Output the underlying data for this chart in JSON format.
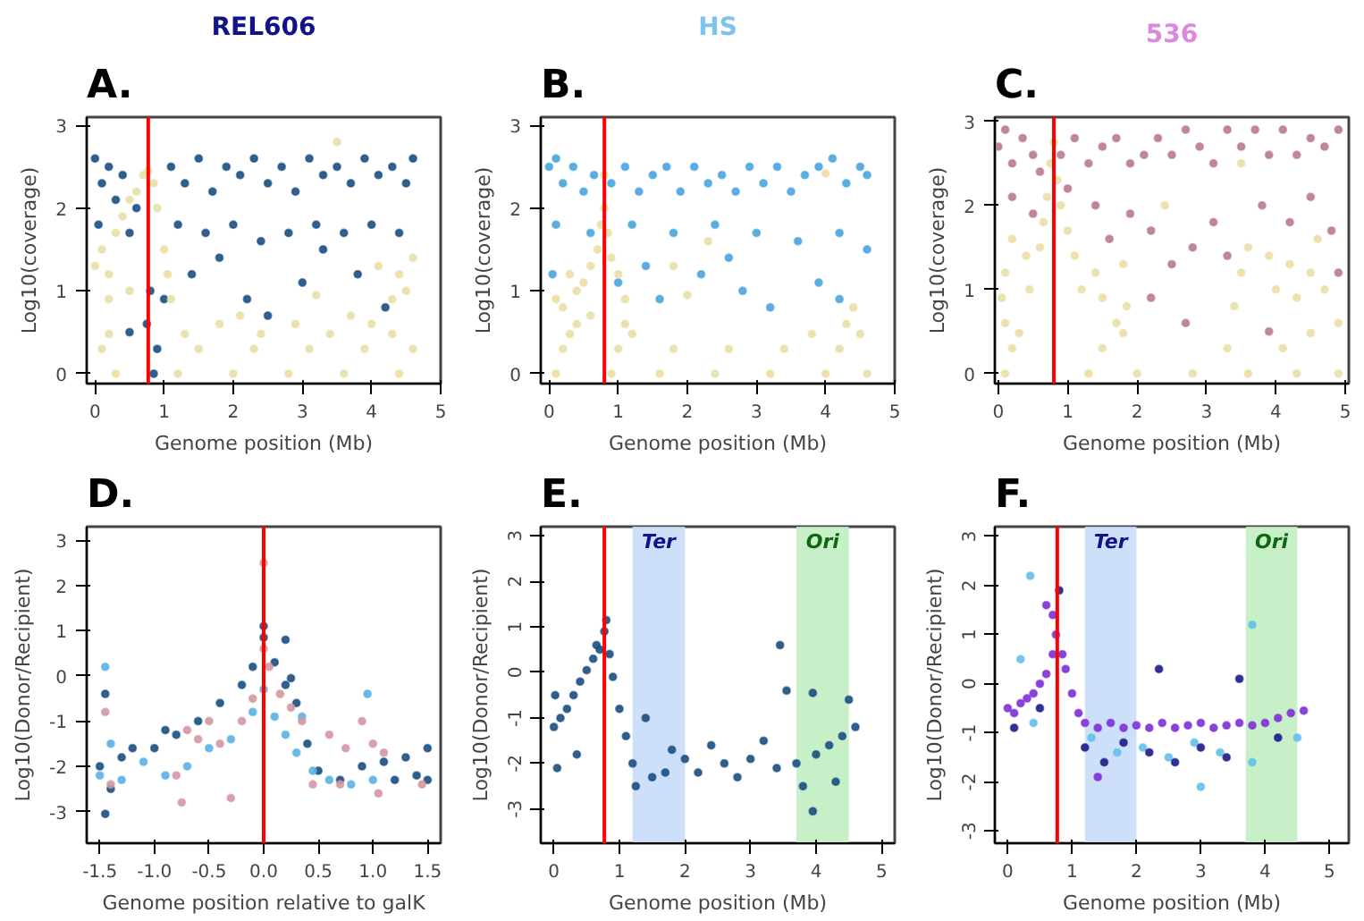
{
  "chart_data": [
    {
      "type": "scatter",
      "title": "REL606",
      "annotations": [
        "A."
      ],
      "xlabel": "Genome position (Mb)",
      "ylabel": "Log10(coverage)",
      "xlim": [
        -0.12,
        5.0
      ],
      "ylim": [
        -0.12,
        3.1
      ],
      "xticks": [
        0,
        1,
        2,
        3,
        4,
        5
      ],
      "yticks": [
        0,
        1,
        2,
        3
      ],
      "marker": "circle",
      "grid": false,
      "ref_lines": [
        {
          "axis": "x",
          "value": 0.77,
          "color": "#ff0000"
        }
      ],
      "series": [
        {
          "color": "#1a4f82",
          "x": [
            0.0,
            0.1,
            0.2,
            0.3,
            0.4,
            0.6,
            1.1,
            1.3,
            1.5,
            1.7,
            1.9,
            2.1,
            2.3,
            2.5,
            2.7,
            2.9,
            3.1,
            3.3,
            3.5,
            3.7,
            3.9,
            4.1,
            4.3,
            4.5,
            4.6,
            0.05,
            0.5,
            1.2,
            1.6,
            2.0,
            2.4,
            2.8,
            3.2,
            3.6,
            4.0,
            4.4,
            0.8,
            0.75,
            0.85,
            1.0,
            1.4,
            1.8,
            2.2,
            2.5,
            3.0,
            3.3,
            3.8,
            4.2,
            0.5,
            0.9
          ],
          "values": [
            2.6,
            2.3,
            2.5,
            2.1,
            2.4,
            2.0,
            2.5,
            2.3,
            2.6,
            2.2,
            2.5,
            2.4,
            2.6,
            2.3,
            2.5,
            2.2,
            2.6,
            2.4,
            2.5,
            2.3,
            2.6,
            2.4,
            2.5,
            2.3,
            2.6,
            1.8,
            1.7,
            1.8,
            1.7,
            1.8,
            1.6,
            1.7,
            1.8,
            1.7,
            1.8,
            1.7,
            1.0,
            0.6,
            0.0,
            0.9,
            1.2,
            1.4,
            0.9,
            0.7,
            1.1,
            1.5,
            1.2,
            0.8,
            0.5,
            0.3
          ]
        },
        {
          "color": "#eadfa6",
          "x": [
            0.0,
            0.1,
            0.2,
            0.3,
            0.4,
            0.5,
            0.6,
            0.7,
            0.77,
            0.85,
            0.9,
            1.0,
            1.05,
            1.1,
            0.2,
            0.5,
            4.4,
            4.5,
            4.6,
            4.3,
            3.5,
            0.3,
            1.2,
            2.0,
            2.8,
            3.6,
            4.4,
            0.1,
            1.5,
            2.3,
            3.1,
            3.9,
            4.6,
            0.2,
            1.3,
            2.4,
            3.4,
            4.3,
            1.8,
            2.9,
            4.0,
            2.1,
            3.7,
            4.1,
            3.2
          ],
          "values": [
            1.3,
            1.5,
            1.2,
            1.7,
            1.9,
            2.1,
            2.2,
            2.4,
            2.45,
            2.3,
            2.0,
            1.5,
            1.2,
            0.9,
            0.9,
            1.0,
            1.2,
            1.0,
            1.4,
            0.9,
            2.8,
            0,
            0,
            0,
            0,
            0,
            0,
            0.3,
            0.3,
            0.3,
            0.3,
            0.3,
            0.3,
            0.48,
            0.48,
            0.48,
            0.48,
            0.48,
            0.6,
            0.6,
            0.6,
            0.7,
            0.7,
            1.3,
            0.95
          ]
        }
      ]
    },
    {
      "type": "scatter",
      "title": "HS",
      "annotations": [
        "B."
      ],
      "xlabel": "Genome position (Mb)",
      "ylabel": "Log10(coverage)",
      "xlim": [
        -0.12,
        5.0
      ],
      "ylim": [
        -0.12,
        3.1
      ],
      "xticks": [
        0,
        1,
        2,
        3,
        4,
        5
      ],
      "yticks": [
        0,
        1,
        2,
        3
      ],
      "marker": "circle",
      "grid": false,
      "ref_lines": [
        {
          "axis": "x",
          "value": 0.8,
          "color": "#ff0000"
        }
      ],
      "series": [
        {
          "color": "#4aa5de",
          "x": [
            0.0,
            0.1,
            0.2,
            0.35,
            0.5,
            0.65,
            0.9,
            1.1,
            1.3,
            1.5,
            1.7,
            1.9,
            2.1,
            2.3,
            2.5,
            2.7,
            2.9,
            3.1,
            3.3,
            3.5,
            3.7,
            3.9,
            4.1,
            4.3,
            4.5,
            4.6,
            0.1,
            0.6,
            1.2,
            1.8,
            2.4,
            3.0,
            3.6,
            4.2,
            4.6,
            0.05,
            1.0,
            1.4,
            1.6,
            2.2,
            2.8,
            3.2,
            3.9,
            4.2,
            2.6
          ],
          "values": [
            2.5,
            2.6,
            2.3,
            2.5,
            2.2,
            2.4,
            2.3,
            2.5,
            2.2,
            2.4,
            2.5,
            2.2,
            2.5,
            2.3,
            2.4,
            2.2,
            2.5,
            2.3,
            2.5,
            2.2,
            2.4,
            2.5,
            2.6,
            2.3,
            2.5,
            2.4,
            1.8,
            1.7,
            1.8,
            1.7,
            1.8,
            1.7,
            1.6,
            1.7,
            1.5,
            1.2,
            1.1,
            1.3,
            0.9,
            1.2,
            1.0,
            0.8,
            1.1,
            0.9,
            1.4
          ]
        },
        {
          "color": "#eadfa6",
          "x": [
            0.8,
            0.8,
            0.75,
            0.85,
            0.7,
            0.9,
            0.6,
            1.0,
            0.5,
            0.4,
            1.1,
            0.3,
            0.1,
            0.2,
            0.1,
            0.9,
            1.6,
            2.4,
            3.2,
            4.0,
            4.6,
            0.2,
            1.0,
            1.8,
            2.6,
            3.4,
            4.2,
            0.3,
            1.2,
            3.8,
            4.5,
            0.4,
            1.1,
            4.3,
            0.6,
            4.4,
            4.0,
            2.3,
            1.8,
            2.0
          ],
          "values": [
            2.4,
            2.0,
            1.8,
            1.7,
            1.5,
            1.4,
            1.3,
            1.2,
            1.1,
            1.0,
            0.9,
            1.2,
            0.9,
            0.8,
            0,
            0,
            0,
            0,
            0,
            0,
            0,
            0.3,
            0.3,
            0.3,
            0.3,
            0.3,
            0.3,
            0.48,
            0.48,
            0.48,
            0.48,
            0.6,
            0.6,
            0.6,
            0.7,
            0.8,
            2.42,
            1.6,
            1.3,
            0.95
          ]
        }
      ]
    },
    {
      "type": "scatter",
      "title": "536",
      "annotations": [
        "C."
      ],
      "xlabel": "Genome position (Mb)",
      "ylabel": "Log10(coverage)",
      "xlim": [
        -0.05,
        5.05
      ],
      "ylim": [
        -0.12,
        3.05
      ],
      "xticks": [
        0,
        1,
        2,
        3,
        4,
        5
      ],
      "yticks": [
        0,
        1,
        2,
        3
      ],
      "marker": "circle",
      "grid": false,
      "ref_lines": [
        {
          "axis": "x",
          "value": 0.8,
          "color": "#ff0000"
        }
      ],
      "series": [
        {
          "color": "#b97b8c",
          "x": [
            0.0,
            0.1,
            0.2,
            0.35,
            0.5,
            0.6,
            0.9,
            1.1,
            1.3,
            1.5,
            1.7,
            1.9,
            2.1,
            2.3,
            2.5,
            2.7,
            2.9,
            3.1,
            3.3,
            3.5,
            3.7,
            3.9,
            4.1,
            4.3,
            4.5,
            4.7,
            4.9,
            0.2,
            0.5,
            1.0,
            1.4,
            1.6,
            1.9,
            2.2,
            2.5,
            2.8,
            3.1,
            3.3,
            3.8,
            4.2,
            4.5,
            4.8,
            2.7,
            2.2,
            3.9,
            4.9
          ],
          "values": [
            2.7,
            2.9,
            2.5,
            2.8,
            2.6,
            2.4,
            2.6,
            2.8,
            2.5,
            2.7,
            2.8,
            2.5,
            2.6,
            2.8,
            2.6,
            2.9,
            2.7,
            2.5,
            2.9,
            2.7,
            2.9,
            2.6,
            2.9,
            2.6,
            2.8,
            2.7,
            2.9,
            2.1,
            1.9,
            2.2,
            2.0,
            1.6,
            1.9,
            1.7,
            1.3,
            1.5,
            1.8,
            1.4,
            2.0,
            1.8,
            2.1,
            1.7,
            0.6,
            0.9,
            0.5,
            1.2
          ]
        },
        {
          "color": "#eadfa6",
          "x": [
            0.8,
            0.75,
            0.85,
            0.7,
            0.9,
            0.65,
            1.0,
            1.1,
            0.6,
            1.2,
            0.1,
            0.2,
            0.05,
            0.4,
            0.45,
            1.4,
            1.5,
            1.8,
            1.85,
            3.5,
            3.6,
            3.9,
            4.0,
            4.2,
            4.3,
            4.6,
            4.5,
            4.7,
            3.4,
            0.1,
            1.3,
            2.0,
            2.8,
            3.6,
            4.3,
            4.9,
            0.2,
            1.5,
            3.3,
            4.1,
            0.3,
            1.8,
            4.5,
            0.1,
            1.7,
            4.9,
            3.5,
            2.4
          ],
          "values": [
            2.75,
            2.5,
            2.3,
            2.1,
            2.0,
            1.8,
            1.7,
            1.4,
            1.5,
            1.0,
            1.2,
            1.6,
            0.9,
            1.4,
            1.0,
            1.2,
            0.9,
            1.3,
            0.8,
            1.2,
            1.5,
            1.4,
            1.0,
            1.3,
            0.9,
            1.6,
            1.2,
            1.0,
            0.8,
            0,
            0,
            0,
            0,
            0,
            0,
            0,
            0.3,
            0.3,
            0.3,
            0.3,
            0.48,
            0.48,
            0.48,
            0.6,
            0.6,
            0.6,
            2.5,
            2.0
          ]
        }
      ]
    },
    {
      "type": "scatter",
      "annotations": [
        "D."
      ],
      "xlabel": "Genome position relative to galK",
      "ylabel": "Log10(Donor/Recipient)",
      "xlim": [
        -1.62,
        1.62
      ],
      "ylim": [
        -3.7,
        3.3
      ],
      "xticks": [
        -1.5,
        {
          "value": -1,
          "label": "-1.0"
        },
        -0.5,
        {
          "value": 0,
          "label": "0.0"
        },
        0.5,
        {
          "value": 1,
          "label": "1.0"
        },
        1.5
      ],
      "yticks": [
        -3,
        -2,
        -1,
        0,
        1,
        2,
        3
      ],
      "marker": "circle",
      "grid": false,
      "ref_lines": [
        {
          "axis": "x",
          "value": 0,
          "color": "#ff0000"
        }
      ],
      "series": [
        {
          "color": "#1a4f82",
          "x": [
            -1.5,
            -1.45,
            -1.45,
            -1.3,
            -1.2,
            -1.0,
            -0.8,
            -0.6,
            -0.4,
            -0.2,
            -0.1,
            0.0,
            0.0,
            0.1,
            0.2,
            0.3,
            0.4,
            0.5,
            0.7,
            0.9,
            1.1,
            1.2,
            1.3,
            1.4,
            1.5,
            1.5,
            -1.4,
            -0.9,
            0.2,
            0.25
          ],
          "values": [
            -2.0,
            -3.05,
            -0.4,
            -1.8,
            -1.6,
            -1.6,
            -1.3,
            -1.0,
            -0.6,
            -0.2,
            0.2,
            1.1,
            0.85,
            0.3,
            -0.2,
            -0.6,
            -1.5,
            -2.1,
            -2.3,
            -2.0,
            -1.9,
            -2.3,
            -1.8,
            -2.2,
            -1.6,
            -2.3,
            -2.5,
            -1.2,
            0.8,
            -0.05
          ]
        },
        {
          "color": "#5ab2e6",
          "x": [
            -1.5,
            -1.45,
            -1.4,
            -1.3,
            -1.1,
            -0.9,
            -0.7,
            -0.5,
            -0.3,
            -0.1,
            0.0,
            0.1,
            0.2,
            0.3,
            0.45,
            0.6,
            0.8,
            1.0,
            0.95,
            0.35
          ],
          "values": [
            -2.2,
            0.2,
            -1.5,
            -2.3,
            -1.9,
            -2.2,
            -2.0,
            -1.6,
            -1.4,
            -0.8,
            -0.3,
            -0.9,
            -1.3,
            -1.7,
            -2.1,
            -2.3,
            -2.4,
            -2.3,
            -0.4,
            -0.9
          ]
        },
        {
          "color": "#d498a3",
          "x": [
            -1.45,
            -1.4,
            -0.8,
            -0.7,
            -0.6,
            -0.5,
            -0.4,
            -0.3,
            -0.2,
            -0.1,
            0.0,
            0.0,
            0.05,
            0.15,
            0.25,
            0.35,
            0.45,
            0.6,
            0.75,
            0.9,
            1.0,
            1.1,
            1.05,
            0.7,
            -0.75,
            1.45
          ],
          "values": [
            -0.8,
            -2.4,
            -2.2,
            -1.2,
            -1.4,
            -1.0,
            -1.5,
            -2.7,
            -1.0,
            -0.5,
            0.6,
            2.5,
            0.2,
            -0.4,
            -0.7,
            -1.0,
            -2.4,
            -1.3,
            -1.6,
            -1.0,
            -1.5,
            -1.7,
            -2.6,
            -2.4,
            -2.8,
            -2.4
          ]
        }
      ]
    },
    {
      "type": "scatter",
      "annotations": [
        "E."
      ],
      "xlabel": "Genome position (Mb)",
      "ylabel": "Log10(Donor/Recipient)",
      "xlim": [
        -0.2,
        5.2
      ],
      "ylim": [
        -3.75,
        3.2
      ],
      "xticks": [
        0,
        1,
        2,
        3,
        4,
        5
      ],
      "yticks": [
        -3,
        -2,
        -1,
        0,
        1,
        2,
        3
      ],
      "marker": "circle",
      "grid": false,
      "ref_lines": [
        {
          "axis": "x",
          "value": 0.77,
          "color": "#ff0000"
        }
      ],
      "bands": [
        {
          "axis": "x",
          "from": 1.2,
          "to": 2.0,
          "label": "Ter",
          "color": "#c8dbf8"
        },
        {
          "axis": "x",
          "from": 3.7,
          "to": 4.5,
          "label": "Ori",
          "color": "#c2eec2"
        }
      ],
      "series": [
        {
          "color": "#1a4f82",
          "x": [
            0.0,
            0.02,
            0.05,
            0.1,
            0.2,
            0.3,
            0.4,
            0.5,
            0.6,
            0.65,
            0.7,
            0.77,
            0.8,
            0.85,
            0.9,
            1.0,
            1.1,
            1.2,
            1.25,
            1.4,
            1.5,
            1.7,
            1.8,
            2.0,
            2.2,
            2.4,
            2.6,
            2.8,
            3.0,
            3.2,
            3.4,
            3.45,
            3.55,
            3.7,
            3.8,
            3.95,
            3.95,
            4.0,
            4.2,
            4.4,
            4.5,
            4.6,
            4.3,
            0.35
          ],
          "values": [
            -1.2,
            -0.5,
            -2.1,
            -1.0,
            -0.8,
            -0.5,
            -0.2,
            0.05,
            0.3,
            0.6,
            0.5,
            0.9,
            1.15,
            0.4,
            -0.1,
            -0.8,
            -1.4,
            -2.0,
            -2.5,
            -1.0,
            -2.3,
            -2.2,
            -1.7,
            -1.9,
            -2.2,
            -1.6,
            -2.0,
            -2.3,
            -1.9,
            -1.5,
            -2.1,
            0.6,
            -0.4,
            -2.0,
            -2.5,
            -0.45,
            -3.05,
            -1.8,
            -1.6,
            -1.4,
            -0.6,
            -1.2,
            -2.4,
            -1.8
          ]
        }
      ]
    },
    {
      "type": "scatter",
      "annotations": [
        "F."
      ],
      "xlabel": "Genome position (Mb)",
      "ylabel": "Log10(Donor/Recipient)",
      "xlim": [
        -0.2,
        5.3
      ],
      "ylim": [
        -3.25,
        3.2
      ],
      "xticks": [
        0,
        1,
        2,
        3,
        4,
        5
      ],
      "yticks": [
        -3,
        -2,
        -1,
        0,
        1,
        2,
        3
      ],
      "marker": "circle",
      "grid": false,
      "ref_lines": [
        {
          "axis": "x",
          "value": 0.77,
          "color": "#ff0000"
        }
      ],
      "bands": [
        {
          "axis": "x",
          "from": 1.2,
          "to": 2.0,
          "label": "Ter",
          "color": "#c8dbf8"
        },
        {
          "axis": "x",
          "from": 3.7,
          "to": 4.5,
          "label": "Ori",
          "color": "#c2eec2"
        }
      ],
      "series": [
        {
          "color": "#62c0ea",
          "x": [
            0.35,
            0.2,
            0.4,
            1.3,
            1.7,
            2.1,
            2.5,
            2.9,
            3.0,
            3.3,
            3.8,
            4.5,
            3.8
          ],
          "values": [
            2.2,
            0.5,
            -0.8,
            -1.1,
            -1.4,
            -1.3,
            -1.5,
            -1.2,
            -2.1,
            -1.4,
            -1.6,
            -1.1,
            1.2
          ]
        },
        {
          "color": "#1c1c8a",
          "x": [
            0.1,
            0.5,
            0.8,
            1.2,
            1.5,
            1.8,
            2.2,
            2.6,
            3.0,
            3.4,
            2.35,
            3.6,
            4.2
          ],
          "values": [
            -0.9,
            -0.5,
            1.9,
            -1.3,
            -1.6,
            -1.2,
            -1.4,
            -1.6,
            -1.3,
            -1.5,
            0.3,
            0.1,
            -1.1
          ]
        },
        {
          "color": "#7f2fd6",
          "x": [
            0.0,
            0.1,
            0.2,
            0.3,
            0.4,
            0.5,
            0.6,
            0.7,
            0.75,
            0.7,
            0.85,
            0.9,
            1.0,
            1.1,
            1.2,
            1.4,
            1.6,
            1.8,
            2.0,
            2.2,
            2.4,
            2.6,
            2.8,
            3.0,
            3.2,
            3.4,
            3.6,
            3.8,
            4.0,
            4.2,
            4.4,
            4.6,
            1.4,
            0.6
          ],
          "values": [
            -0.5,
            -0.6,
            -0.4,
            -0.3,
            -0.2,
            0.0,
            0.2,
            0.6,
            1.0,
            1.4,
            0.6,
            0.3,
            -0.2,
            -0.6,
            -0.8,
            -0.9,
            -0.8,
            -0.9,
            -0.85,
            -0.9,
            -0.8,
            -0.9,
            -0.85,
            -0.8,
            -0.9,
            -0.85,
            -0.8,
            -0.85,
            -0.8,
            -0.7,
            -0.6,
            -0.55,
            -1.9,
            1.6
          ]
        }
      ]
    }
  ]
}
